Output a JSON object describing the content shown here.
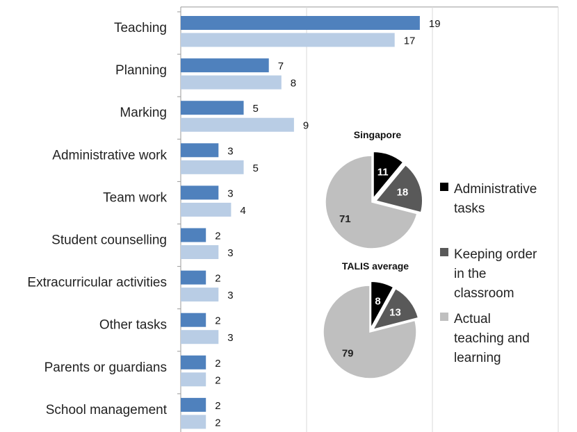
{
  "chart_data": [
    {
      "type": "bar",
      "orientation": "horizontal",
      "categories": [
        "Teaching",
        "Planning",
        "Marking",
        "Administrative work",
        "Team work",
        "Student counselling",
        "Extracurricular activities",
        "Other tasks",
        "Parents or guardians",
        "School management"
      ],
      "series": [
        {
          "values": [
            19,
            7,
            5,
            3,
            3,
            2,
            2,
            2,
            2,
            2
          ],
          "color": "#4F81BD"
        },
        {
          "values": [
            17,
            8,
            9,
            5,
            4,
            3,
            3,
            3,
            2,
            2
          ],
          "color": "#B9CDE5"
        }
      ],
      "xlim": [
        0,
        30
      ],
      "grid": true
    },
    {
      "type": "pie",
      "title": "Singapore",
      "slices": [
        {
          "label": "Administrative tasks",
          "value": 11,
          "color": "#000000"
        },
        {
          "label": "Keeping order in the classroom",
          "value": 18,
          "color": "#595959"
        },
        {
          "label": "Actual teaching and learning",
          "value": 71,
          "color": "#BFBFBF"
        }
      ]
    },
    {
      "type": "pie",
      "title": "TALIS average",
      "slices": [
        {
          "label": "Administrative tasks",
          "value": 8,
          "color": "#000000"
        },
        {
          "label": "Keeping order in the classroom",
          "value": 13,
          "color": "#595959"
        },
        {
          "label": "Actual teaching and learning",
          "value": 79,
          "color": "#BFBFBF"
        }
      ]
    }
  ],
  "legend": [
    {
      "lines": [
        "Administrative",
        "tasks"
      ],
      "color": "#000000"
    },
    {
      "lines": [
        "Keeping order",
        "in the",
        "classroom"
      ],
      "color": "#595959"
    },
    {
      "lines": [
        "Actual",
        "teaching and",
        "learning"
      ],
      "color": "#BFBFBF"
    }
  ]
}
